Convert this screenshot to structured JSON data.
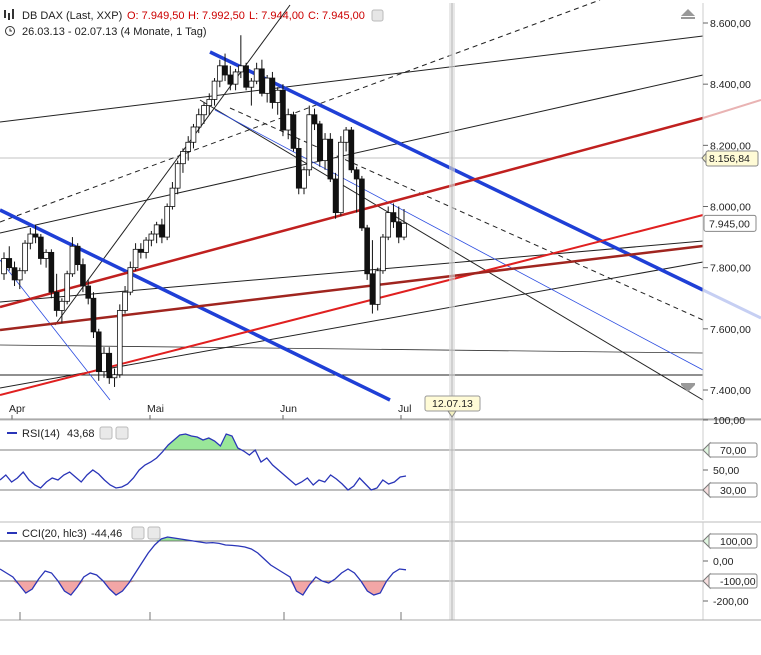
{
  "header": {
    "symbol": "DB DAX (Last, XXP)",
    "open": "O: 7.949,50",
    "high": "H: 7.992,50",
    "low": "L: 7.944,00",
    "close": "C: 7.945,00",
    "range": "26.03.13 - 02.07.13 (4 Monate, 1 Tag)",
    "colors": {
      "ohlc_values": "#cc0000",
      "text": "#222222"
    }
  },
  "chart_data": [
    {
      "type": "candlestick",
      "title": "DB DAX (Last, XXP)",
      "y_ticks": [
        "8.600,00",
        "8.400,00",
        "8.200,00",
        "8.000,00",
        "7.800,00",
        "7.600,00",
        "7.400,00"
      ],
      "ylim": [
        7350,
        8640
      ],
      "x_ticks": [
        "Apr",
        "Mai",
        "Jun",
        "Jul"
      ],
      "current_price_label": "7.945,00",
      "crosshair_price_label": "8.156,84",
      "crosshair_date_label": "12.07.13",
      "candles": [
        [
          7780,
          7850,
          7760,
          7830
        ],
        [
          7830,
          7870,
          7790,
          7800
        ],
        [
          7800,
          7820,
          7740,
          7760
        ],
        [
          7760,
          7800,
          7730,
          7790
        ],
        [
          7790,
          7890,
          7780,
          7880
        ],
        [
          7880,
          7930,
          7860,
          7910
        ],
        [
          7910,
          7940,
          7880,
          7900
        ],
        [
          7900,
          7910,
          7810,
          7830
        ],
        [
          7830,
          7860,
          7800,
          7850
        ],
        [
          7850,
          7860,
          7700,
          7720
        ],
        [
          7720,
          7780,
          7640,
          7660
        ],
        [
          7660,
          7700,
          7620,
          7690
        ],
        [
          7690,
          7790,
          7680,
          7780
        ],
        [
          7780,
          7900,
          7770,
          7870
        ],
        [
          7870,
          7880,
          7790,
          7810
        ],
        [
          7810,
          7830,
          7720,
          7740
        ],
        [
          7740,
          7760,
          7680,
          7700
        ],
        [
          7700,
          7720,
          7570,
          7590
        ],
        [
          7590,
          7600,
          7430,
          7460
        ],
        [
          7460,
          7540,
          7440,
          7520
        ],
        [
          7520,
          7540,
          7420,
          7440
        ],
        [
          7440,
          7470,
          7410,
          7450
        ],
        [
          7450,
          7680,
          7440,
          7660
        ],
        [
          7660,
          7740,
          7650,
          7720
        ],
        [
          7720,
          7820,
          7710,
          7800
        ],
        [
          7800,
          7880,
          7790,
          7860
        ],
        [
          7860,
          7880,
          7830,
          7850
        ],
        [
          7850,
          7900,
          7830,
          7890
        ],
        [
          7890,
          7920,
          7870,
          7910
        ],
        [
          7910,
          7950,
          7880,
          7940
        ],
        [
          7940,
          7960,
          7880,
          7900
        ],
        [
          7900,
          8010,
          7890,
          8000
        ],
        [
          8000,
          8080,
          7990,
          8060
        ],
        [
          8060,
          8150,
          8040,
          8140
        ],
        [
          8140,
          8190,
          8110,
          8180
        ],
        [
          8180,
          8230,
          8150,
          8210
        ],
        [
          8210,
          8270,
          8190,
          8260
        ],
        [
          8260,
          8320,
          8240,
          8300
        ],
        [
          8300,
          8340,
          8270,
          8330
        ],
        [
          8330,
          8370,
          8300,
          8350
        ],
        [
          8350,
          8420,
          8330,
          8410
        ],
        [
          8410,
          8480,
          8390,
          8460
        ],
        [
          8460,
          8500,
          8410,
          8430
        ],
        [
          8430,
          8460,
          8380,
          8400
        ],
        [
          8400,
          8450,
          8380,
          8440
        ],
        [
          8440,
          8560,
          8420,
          8460
        ],
        [
          8460,
          8470,
          8380,
          8390
        ],
        [
          8390,
          8420,
          8330,
          8410
        ],
        [
          8410,
          8470,
          8400,
          8450
        ],
        [
          8450,
          8480,
          8360,
          8370
        ],
        [
          8370,
          8430,
          8340,
          8420
        ],
        [
          8420,
          8440,
          8320,
          8340
        ],
        [
          8340,
          8390,
          8300,
          8380
        ],
        [
          8380,
          8400,
          8230,
          8250
        ],
        [
          8250,
          8320,
          8220,
          8300
        ],
        [
          8300,
          8310,
          8180,
          8190
        ],
        [
          8190,
          8220,
          8040,
          8060
        ],
        [
          8060,
          8130,
          8040,
          8120
        ],
        [
          8120,
          8330,
          8100,
          8300
        ],
        [
          8300,
          8320,
          8250,
          8270
        ],
        [
          8270,
          8280,
          8130,
          8150
        ],
        [
          8150,
          8240,
          8120,
          8220
        ],
        [
          8220,
          8240,
          8080,
          8090
        ],
        [
          8090,
          8110,
          7960,
          7980
        ],
        [
          7980,
          8230,
          7970,
          8210
        ],
        [
          8210,
          8260,
          8180,
          8250
        ],
        [
          8250,
          8260,
          8110,
          8120
        ],
        [
          8120,
          8130,
          7980,
          8090
        ],
        [
          8090,
          8100,
          7920,
          7930
        ],
        [
          7930,
          7940,
          7760,
          7780
        ],
        [
          7780,
          7890,
          7650,
          7680
        ],
        [
          7680,
          7800,
          7660,
          7790
        ],
        [
          7790,
          7910,
          7780,
          7900
        ],
        [
          7900,
          8000,
          7890,
          7980
        ],
        [
          7980,
          8010,
          7930,
          7950
        ],
        [
          7950,
          8000,
          7880,
          7900
        ],
        [
          7900,
          7992,
          7890,
          7945
        ]
      ],
      "channel_lines": [
        {
          "color": "#1f3fd6",
          "width": 3.5,
          "p1": [
            "Apr-start",
            8000
          ],
          "p2": [
            "end",
            7720
          ]
        },
        {
          "color": "#cc2222",
          "width": 3,
          "p1": [
            "Apr-start",
            7440
          ],
          "p2": [
            "end",
            8000
          ]
        }
      ]
    },
    {
      "type": "line",
      "title": "RSI(14)",
      "value_label": "43,68",
      "y_ticks": [
        "100,00",
        "70,00",
        "50,00",
        "30,00"
      ],
      "ylim": [
        0,
        100
      ],
      "levels": [
        70,
        30
      ],
      "series": [
        {
          "name": "RSI(14)",
          "values": [
            40,
            45,
            38,
            42,
            48,
            40,
            35,
            32,
            38,
            42,
            40,
            45,
            48,
            43,
            38,
            45,
            50,
            46,
            40,
            35,
            32,
            33,
            36,
            42,
            50,
            55,
            58,
            62,
            68,
            75,
            80,
            85,
            86,
            84,
            83,
            80,
            82,
            79,
            74,
            86,
            84,
            72,
            69,
            65,
            70,
            58,
            62,
            55,
            50,
            45,
            40,
            35,
            38,
            42,
            35,
            40,
            38,
            45,
            41,
            36,
            30,
            34,
            42,
            36,
            30,
            32,
            40,
            36,
            38,
            43,
            44
          ]
        }
      ],
      "fill_colors": {
        "overbought": "#99e699",
        "oversold": "#f2a6a6"
      }
    },
    {
      "type": "line",
      "title": "CCI(20, hlc3)",
      "value_label": "-44,46",
      "y_ticks": [
        "100,00",
        "0,00",
        "-100,00",
        "-200,00"
      ],
      "ylim": [
        -260,
        200
      ],
      "levels": [
        100,
        -100
      ],
      "series": [
        {
          "name": "CCI(20, hlc3)",
          "values": [
            -40,
            -60,
            -80,
            -120,
            -160,
            -140,
            -90,
            -50,
            -60,
            -100,
            -150,
            -170,
            -130,
            -80,
            -60,
            -70,
            -100,
            -140,
            -170,
            -150,
            -110,
            -60,
            -10,
            40,
            80,
            110,
            120,
            115,
            110,
            105,
            100,
            95,
            90,
            92,
            88,
            80,
            78,
            75,
            70,
            60,
            40,
            10,
            -20,
            -40,
            -60,
            -80,
            -150,
            -170,
            -120,
            -80,
            -100,
            -110,
            -90,
            -60,
            -40,
            -60,
            -100,
            -150,
            -170,
            -160,
            -100,
            -60,
            -40,
            -44
          ]
        }
      ],
      "fill_colors": {
        "overbought": "#99e699",
        "oversold": "#f2a6a6"
      }
    }
  ]
}
